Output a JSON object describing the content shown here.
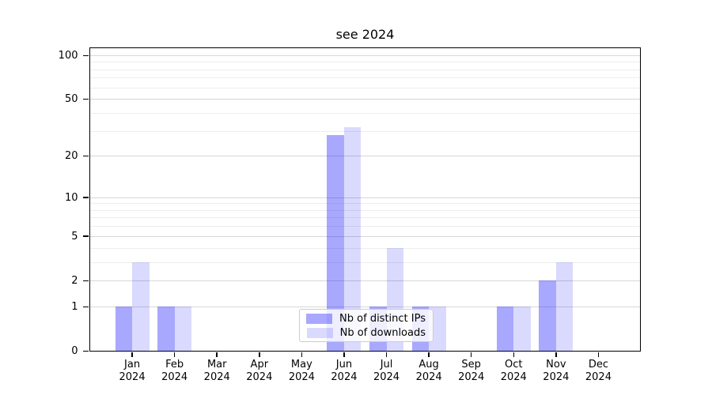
{
  "chart_data": {
    "type": "bar",
    "title": "see 2024",
    "categories": [
      "Jan",
      "Feb",
      "Mar",
      "Apr",
      "May",
      "Jun",
      "Jul",
      "Aug",
      "Sep",
      "Oct",
      "Nov",
      "Dec"
    ],
    "category_year": "2024",
    "series": [
      {
        "name": "Nb of distinct IPs",
        "color": "#0000ff",
        "alpha": 0.34,
        "values": [
          1,
          1,
          0,
          0,
          0,
          28,
          1,
          1,
          0,
          1,
          2,
          0
        ]
      },
      {
        "name": "Nb of downloads",
        "color": "#0000ff",
        "alpha": 0.145,
        "values": [
          3,
          1,
          0,
          0,
          0,
          32,
          4,
          1,
          0,
          1,
          3,
          0
        ]
      }
    ],
    "xlabel": "",
    "ylabel": "",
    "yscale": "log1p",
    "yticks": [
      0,
      1,
      2,
      5,
      10,
      20,
      50,
      100
    ],
    "minor_gridlines": [
      3,
      4,
      6,
      7,
      8,
      9,
      30,
      40,
      60,
      70,
      80,
      90
    ],
    "ylim": [
      0,
      113
    ],
    "grid": true,
    "legend_position": "lower center",
    "background_color": "#ffffff",
    "gridline_major_color": "#d7d7d7",
    "gridline_minor_color": "#ededed"
  }
}
